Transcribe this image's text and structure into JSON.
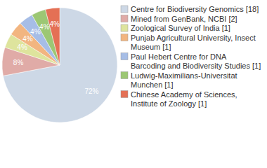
{
  "chart_data": {
    "type": "pie",
    "categories": [
      "Centre for Biodiversity Genomics [18]",
      "Mined from GenBank, NCBI [2]",
      "Zoological Survey of India [1]",
      "Punjab Agricultural University, Insect Museum [1]",
      "Paul Hebert Centre for DNA Barcoding and Biodiversity Studies [1]",
      "Ludwig-Maximilians-Universitat Munchen [1]",
      "Chinese Academy of Sciences, Institute of Zoology [1]"
    ],
    "values": [
      72,
      8,
      4,
      4,
      4,
      4,
      4
    ],
    "value_labels": [
      "72%",
      "8%",
      "4%",
      "4%",
      "4%",
      "4%",
      "4%"
    ],
    "colors": [
      "#cdd8e6",
      "#e0aba7",
      "#dee49d",
      "#f2b580",
      "#a6bde6",
      "#9cc774",
      "#e47055"
    ],
    "data_labels": true,
    "legend": "right"
  }
}
